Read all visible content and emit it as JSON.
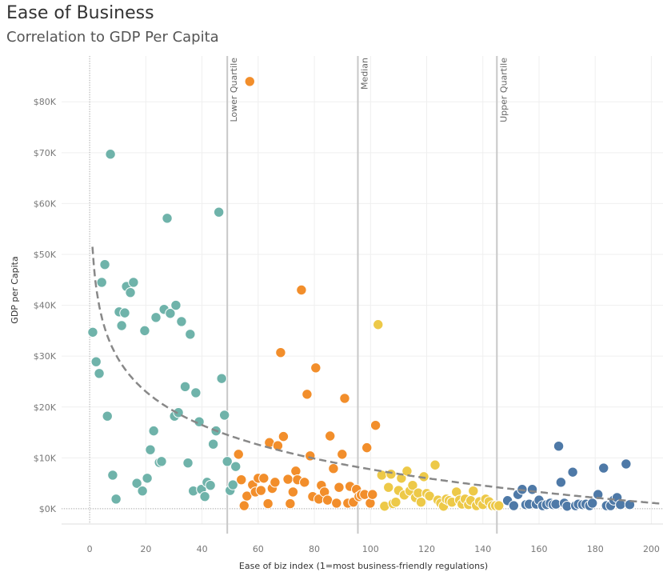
{
  "header": {
    "title": "Ease of Business",
    "subtitle": "Correlation to GDP Per Capita"
  },
  "chart_data": {
    "type": "scatter",
    "title": "Ease of Business",
    "subtitle": "Correlation to GDP Per Capita",
    "xlabel": "Ease of biz index (1=most business-friendly regulations)",
    "ylabel": "GDP per Capita",
    "xlim": [
      -10,
      205
    ],
    "ylim": [
      -3,
      89
    ],
    "x_ticks": [
      0,
      20,
      40,
      60,
      80,
      100,
      120,
      140,
      160,
      180,
      200
    ],
    "y_ticks": [
      {
        "v": 0,
        "label": "$0K"
      },
      {
        "v": 10,
        "label": "$10K"
      },
      {
        "v": 20,
        "label": "$20K"
      },
      {
        "v": 30,
        "label": "$30K"
      },
      {
        "v": 40,
        "label": "$40K"
      },
      {
        "v": 50,
        "label": "$50K"
      },
      {
        "v": 60,
        "label": "$60K"
      },
      {
        "v": 70,
        "label": "$70K"
      },
      {
        "v": 80,
        "label": "$80K"
      }
    ],
    "y_unit": "thousands USD",
    "grid": true,
    "reference_lines": [
      {
        "label": "Lower Quartile",
        "x": 49
      },
      {
        "label": "Median",
        "x": 95.5
      },
      {
        "label": "Upper Quartile",
        "x": 145
      }
    ],
    "trendline": {
      "type": "logarithmic",
      "intercept": 51.5,
      "slope": -9.5,
      "x_range": [
        1,
        205
      ],
      "color": "#888888"
    },
    "series": [
      {
        "color": "#6fb3aa",
        "points": [
          [
            1.1,
            34.7
          ],
          [
            2.3,
            28.9
          ],
          [
            3.4,
            26.6
          ],
          [
            4.3,
            44.5
          ],
          [
            5.4,
            48
          ],
          [
            6.3,
            18.2
          ],
          [
            7.4,
            69.7
          ],
          [
            8.2,
            6.6
          ],
          [
            9.4,
            1.9
          ],
          [
            10.5,
            38.7
          ],
          [
            11.4,
            36
          ],
          [
            12.5,
            38.5
          ],
          [
            13.1,
            43.7
          ],
          [
            14.5,
            42.5
          ],
          [
            15.6,
            44.5
          ],
          [
            16.8,
            5
          ],
          [
            18.8,
            3.5
          ],
          [
            19.6,
            35
          ],
          [
            20.5,
            6
          ],
          [
            21.6,
            11.6
          ],
          [
            22.8,
            15.3
          ],
          [
            23.6,
            37.6
          ],
          [
            24.8,
            9.1
          ],
          [
            25.6,
            9.3
          ],
          [
            26.5,
            39.2
          ],
          [
            27.6,
            57.1
          ],
          [
            28.7,
            38.4
          ],
          [
            30.2,
            18.2
          ],
          [
            30.7,
            40
          ],
          [
            31.6,
            18.9
          ],
          [
            32.7,
            36.8
          ],
          [
            34,
            24
          ],
          [
            35,
            9
          ],
          [
            35.8,
            34.3
          ],
          [
            36.9,
            3.5
          ],
          [
            37.8,
            22.8
          ],
          [
            39,
            17.1
          ],
          [
            39.8,
            3.8
          ],
          [
            41,
            2.4
          ],
          [
            41.8,
            5.2
          ],
          [
            43,
            4.6
          ],
          [
            44,
            12.7
          ],
          [
            45,
            15.3
          ],
          [
            46,
            58.3
          ],
          [
            47,
            25.6
          ],
          [
            48,
            18.4
          ],
          [
            49,
            9.3
          ],
          [
            50,
            3.6
          ],
          [
            51,
            4.7
          ],
          [
            52,
            8.3
          ]
        ]
      },
      {
        "color": "#f28e2b",
        "points": [
          [
            57,
            84
          ],
          [
            53,
            10.7
          ],
          [
            54,
            5.7
          ],
          [
            55,
            0.6
          ],
          [
            56,
            2.5
          ],
          [
            58,
            4.7
          ],
          [
            59,
            3.3
          ],
          [
            60,
            6
          ],
          [
            61,
            3.6
          ],
          [
            62,
            6
          ],
          [
            63.5,
            1
          ],
          [
            64,
            13
          ],
          [
            65,
            4
          ],
          [
            66,
            5.2
          ],
          [
            67,
            12.4
          ],
          [
            68,
            30.7
          ],
          [
            69,
            14.2
          ],
          [
            70.6,
            5.8
          ],
          [
            71.4,
            1
          ],
          [
            72.4,
            3.3
          ],
          [
            73.4,
            7.4
          ],
          [
            74,
            5.7
          ],
          [
            75.4,
            43
          ],
          [
            76.5,
            5.2
          ],
          [
            77.4,
            22.5
          ],
          [
            78.5,
            10.4
          ],
          [
            79.4,
            2.4
          ],
          [
            80.5,
            27.7
          ],
          [
            81.6,
            1.9
          ],
          [
            82.5,
            4.6
          ],
          [
            83.6,
            3.3
          ],
          [
            84.7,
            1.7
          ],
          [
            85.6,
            14.3
          ],
          [
            86.8,
            7.9
          ],
          [
            87.9,
            1.1
          ],
          [
            88.8,
            4.2
          ],
          [
            89.9,
            10.7
          ],
          [
            90.8,
            21.7
          ],
          [
            91.9,
            1.1
          ],
          [
            92.7,
            4.4
          ],
          [
            93.9,
            1.3
          ],
          [
            95,
            3.8
          ],
          [
            95.9,
            2.4
          ],
          [
            96.7,
            2.7
          ],
          [
            97.9,
            2.8
          ],
          [
            98.7,
            12
          ],
          [
            99.9,
            1.1
          ],
          [
            100.7,
            2.8
          ],
          [
            101.8,
            16.4
          ]
        ]
      },
      {
        "color": "#edc948",
        "points": [
          [
            102.7,
            36.2
          ],
          [
            104,
            6.6
          ],
          [
            105,
            0.5
          ],
          [
            106.4,
            4.2
          ],
          [
            107.3,
            6.8
          ],
          [
            108,
            1
          ],
          [
            109,
            1.3
          ],
          [
            110,
            3.6
          ],
          [
            111,
            6
          ],
          [
            112,
            2.7
          ],
          [
            113,
            7.4
          ],
          [
            114,
            3.5
          ],
          [
            115,
            4.6
          ],
          [
            116,
            2.2
          ],
          [
            117,
            3.1
          ],
          [
            118,
            1.3
          ],
          [
            119,
            6.3
          ],
          [
            120,
            3
          ],
          [
            121,
            2.5
          ],
          [
            123,
            8.6
          ],
          [
            124,
            1.7
          ],
          [
            125,
            1.1
          ],
          [
            126,
            0.5
          ],
          [
            127,
            1.9
          ],
          [
            128,
            1.6
          ],
          [
            129,
            1.3
          ],
          [
            130.6,
            3.3
          ],
          [
            131.7,
            1.7
          ],
          [
            132.6,
            0.9
          ],
          [
            133.7,
            1.9
          ],
          [
            134.9,
            0.8
          ],
          [
            135.7,
            1.6
          ],
          [
            136.6,
            3.5
          ],
          [
            137.7,
            0.6
          ],
          [
            138.8,
            1.4
          ],
          [
            140,
            0.8
          ],
          [
            141,
            1.9
          ],
          [
            142.2,
            1.4
          ],
          [
            143.4,
            0.6
          ],
          [
            144.5,
            0.6
          ],
          [
            145.7,
            0.6
          ]
        ]
      },
      {
        "color": "#4e79a7",
        "points": [
          [
            148.8,
            1.6
          ],
          [
            151,
            0.6
          ],
          [
            152.5,
            2.8
          ],
          [
            154,
            3.8
          ],
          [
            155.3,
            0.8
          ],
          [
            156.5,
            0.9
          ],
          [
            157.6,
            3.8
          ],
          [
            159,
            0.9
          ],
          [
            160,
            1.7
          ],
          [
            161.3,
            0.6
          ],
          [
            162.7,
            0.8
          ],
          [
            164,
            1.1
          ],
          [
            165,
            0.8
          ],
          [
            166,
            0.9
          ],
          [
            167,
            12.3
          ],
          [
            167.8,
            5.2
          ],
          [
            169,
            1.1
          ],
          [
            170,
            0.5
          ],
          [
            172,
            7.2
          ],
          [
            173,
            0.6
          ],
          [
            174,
            0.9
          ],
          [
            175.5,
            0.8
          ],
          [
            176.7,
            0.9
          ],
          [
            178,
            0.6
          ],
          [
            179,
            1.1
          ],
          [
            181,
            2.8
          ],
          [
            183,
            8
          ],
          [
            184,
            0.6
          ],
          [
            185.5,
            0.6
          ],
          [
            186.6,
            1.7
          ],
          [
            187.8,
            2.2
          ],
          [
            189,
            0.8
          ],
          [
            191,
            8.8
          ],
          [
            192.3,
            0.8
          ]
        ]
      }
    ]
  }
}
